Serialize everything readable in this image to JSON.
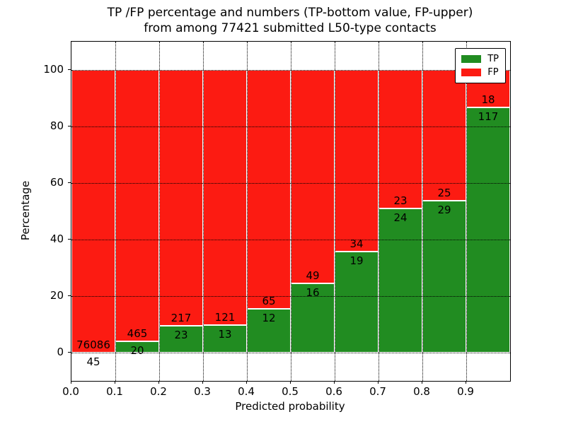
{
  "figure": {
    "title_line1": "TP /FP percentage and numbers (TP-bottom value, FP-upper)",
    "title_line2": "from among 77421 submitted L50-type contacts",
    "background": "#ffffff",
    "frame_color": "#000000"
  },
  "chart_data": {
    "type": "bar",
    "stacked": true,
    "normalized_to_percent": true,
    "title": "TP /FP percentage and numbers (TP-bottom value, FP-upper)\nfrom among 77421 submitted L50-type contacts",
    "xlabel": "Predicted probability",
    "ylabel": "Percentage",
    "total_contacts": 77421,
    "bin_width": 0.1,
    "categories": [
      0.0,
      0.1,
      0.2,
      0.3,
      0.4,
      0.5,
      0.6,
      0.7,
      0.8,
      0.9
    ],
    "x_tick_labels": [
      "0.0",
      "0.1",
      "0.2",
      "0.3",
      "0.4",
      "0.5",
      "0.6",
      "0.7",
      "0.8",
      "0.9"
    ],
    "y_ticks": [
      0,
      20,
      40,
      60,
      80,
      100
    ],
    "xlim": [
      0,
      1
    ],
    "ylim": [
      -10,
      110
    ],
    "grid": true,
    "grid_style": "dotted",
    "series": [
      {
        "name": "TP",
        "color": "#218c21",
        "counts": [
          45,
          20,
          23,
          13,
          12,
          16,
          19,
          24,
          29,
          117
        ]
      },
      {
        "name": "FP",
        "color": "#fc1b12",
        "counts": [
          76086,
          465,
          217,
          121,
          65,
          49,
          34,
          23,
          25,
          18
        ]
      }
    ],
    "tp_percent_of_bin": [
      0.06,
      4.12,
      9.58,
      9.7,
      15.58,
      24.62,
      35.85,
      51.06,
      53.7,
      86.67
    ],
    "legend": {
      "position": "upper right",
      "entries": [
        {
          "label": "TP",
          "color": "#218c21"
        },
        {
          "label": "FP",
          "color": "#fc1b12"
        }
      ]
    }
  }
}
